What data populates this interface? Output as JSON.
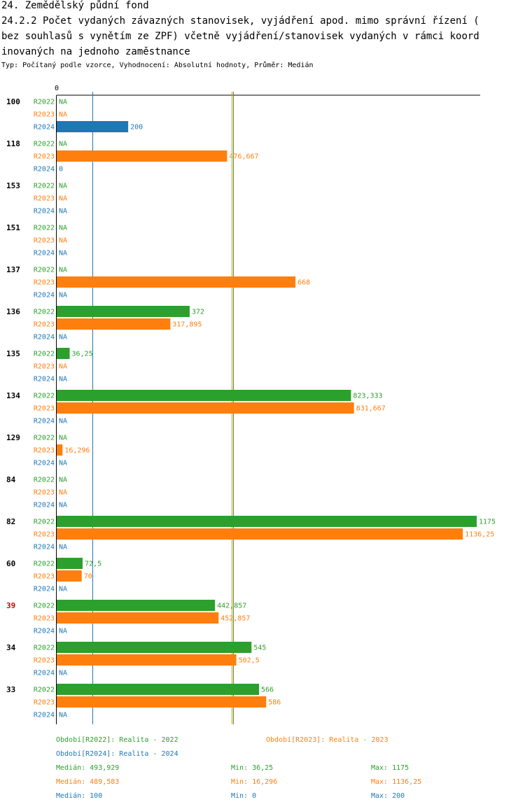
{
  "header": {
    "title_line1": "24. Zemědělský půdní fond",
    "title_line2": "24.2.2 Počet vydaných závazných stanovisek, vyjádření apod. mimo správní řízení (",
    "title_line3": "bez souhlasů s vynětím ze ZPF) včetně vyjádření/stanovisek vydaných v rámci koord",
    "title_line4": "inovaných na jednoho zaměstnance",
    "subtitle": "Typ: Počítaný podle vzorce, Vyhodnocení: Absolutní hodnoty, Průměr: Medián"
  },
  "colors": {
    "R2022": "#2ca02c",
    "R2023": "#ff7f0e",
    "R2024": "#1f77b4",
    "highlight": "#cc0000"
  },
  "chart_data": {
    "type": "bar",
    "orientation": "horizontal",
    "axis_tick_label": "0",
    "xlim": [
      0,
      1175
    ],
    "categories": [
      "100",
      "118",
      "153",
      "151",
      "137",
      "136",
      "135",
      "134",
      "129",
      "84",
      "82",
      "60",
      "39",
      "34",
      "33"
    ],
    "highlighted_category": "39",
    "series": [
      {
        "name": "R2022",
        "values": [
          null,
          null,
          null,
          null,
          null,
          372,
          36.25,
          823.333,
          null,
          null,
          1175,
          72.5,
          442.857,
          545,
          566
        ],
        "labels": [
          "NA",
          "NA",
          "NA",
          "NA",
          "NA",
          "372",
          "36,25",
          "823,333",
          "NA",
          "NA",
          "1175",
          "72,5",
          "442,857",
          "545",
          "566"
        ]
      },
      {
        "name": "R2023",
        "values": [
          null,
          476.667,
          null,
          null,
          668,
          317.895,
          null,
          831.667,
          16.296,
          null,
          1136.25,
          70,
          452.857,
          502.5,
          586
        ],
        "labels": [
          "NA",
          "476,667",
          "NA",
          "NA",
          "668",
          "317,895",
          "NA",
          "831,667",
          "16,296",
          "NA",
          "1136,25",
          "70",
          "452,857",
          "502,5",
          "586"
        ]
      },
      {
        "name": "R2024",
        "values": [
          200,
          0,
          null,
          null,
          null,
          null,
          null,
          null,
          null,
          null,
          null,
          null,
          null,
          null,
          null
        ],
        "labels": [
          "200",
          "0",
          "NA",
          "NA",
          "NA",
          "NA",
          "NA",
          "NA",
          "NA",
          "NA",
          "NA",
          "NA",
          "NA",
          "NA",
          "NA"
        ]
      }
    ],
    "reference_lines": [
      {
        "series": "R2024",
        "statistic": "median",
        "value": 100
      },
      {
        "series": "R2023",
        "statistic": "median",
        "value": 489.583
      },
      {
        "series": "R2022",
        "statistic": "median",
        "value": 493.929
      }
    ]
  },
  "legend": {
    "period_2022": "Období[R2022]: Realita - 2022",
    "period_2023": "Období[R2023]: Realita - 2023",
    "period_2024": "Období[R2024]: Realita - 2024",
    "stats": [
      {
        "series": "R2022",
        "median": "Medián: 493,929",
        "min": "Min: 36,25",
        "max": "Max: 1175"
      },
      {
        "series": "R2023",
        "median": "Medián: 489,583",
        "min": "Min: 16,296",
        "max": "Max: 1136,25"
      },
      {
        "series": "R2024",
        "median": "Medián: 100",
        "min": "Min: 0",
        "max": "Max: 200"
      }
    ]
  }
}
